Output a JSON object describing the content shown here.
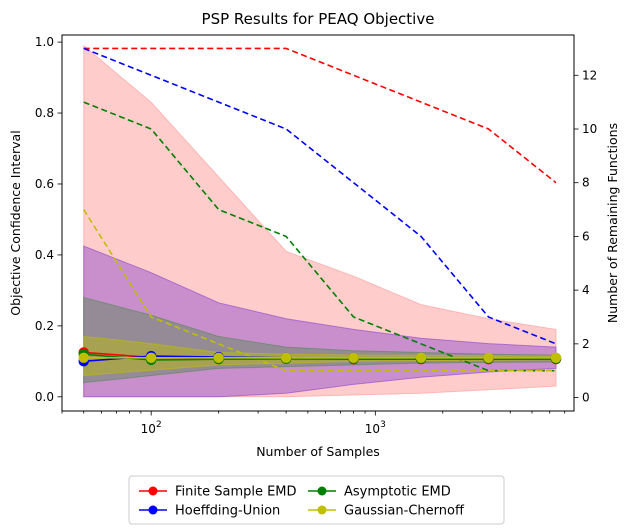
{
  "chart_data": {
    "type": "line",
    "title": "PSP Results for PEAQ Objective",
    "xlabel": "Number of Samples",
    "ylabel_left": "Objective Confidence Interval",
    "ylabel_right": "Number of Remaining Functions",
    "x_scale": "log",
    "xlim": [
      40,
      7700
    ],
    "ylim_left": [
      -0.04,
      1.02
    ],
    "ylim_right": [
      -0.5,
      13.5
    ],
    "x": [
      50,
      100,
      200,
      400,
      800,
      1600,
      3200,
      6400
    ],
    "x_ticks": [
      {
        "value": 100,
        "base": "10",
        "exp": "2"
      },
      {
        "value": 1000,
        "base": "10",
        "exp": "3"
      }
    ],
    "yticks_left": [
      {
        "value": 0.0,
        "label": "0.0"
      },
      {
        "value": 0.2,
        "label": "0.2"
      },
      {
        "value": 0.4,
        "label": "0.4"
      },
      {
        "value": 0.6,
        "label": "0.6"
      },
      {
        "value": 0.8,
        "label": "0.8"
      },
      {
        "value": 1.0,
        "label": "1.0"
      }
    ],
    "yticks_right": [
      {
        "value": 0,
        "label": "0"
      },
      {
        "value": 2,
        "label": "2"
      },
      {
        "value": 4,
        "label": "4"
      },
      {
        "value": 6,
        "label": "6"
      },
      {
        "value": 8,
        "label": "8"
      },
      {
        "value": 10,
        "label": "10"
      },
      {
        "value": 12,
        "label": "12"
      }
    ],
    "grid": false,
    "legend_position": "below",
    "series": [
      {
        "name": "Finite Sample EMD",
        "color": "#ff0000",
        "band_color": "#ff9999",
        "band_upper": [
          0.99,
          0.83,
          0.62,
          0.41,
          0.34,
          0.26,
          0.22,
          0.19
        ],
        "band_lower": [
          0.0,
          0.0,
          0.0,
          0.0,
          0.005,
          0.01,
          0.02,
          0.03
        ],
        "values": [
          0.125,
          0.111,
          0.108,
          0.107,
          0.106,
          0.106,
          0.106,
          0.106
        ],
        "remaining": [
          13,
          13,
          13,
          13,
          12,
          11,
          10,
          8
        ]
      },
      {
        "name": "Hoeffding-Union",
        "color": "#0000ff",
        "band_color": "#8844cc",
        "band_upper": [
          0.425,
          0.35,
          0.265,
          0.22,
          0.19,
          0.165,
          0.15,
          0.14
        ],
        "band_lower": [
          0.0,
          0.0,
          0.0,
          0.01,
          0.035,
          0.055,
          0.07,
          0.08
        ],
        "values": [
          0.1,
          0.115,
          0.112,
          0.11,
          0.11,
          0.109,
          0.109,
          0.109
        ],
        "remaining": [
          13,
          12,
          11,
          10,
          8,
          6,
          3,
          2
        ]
      },
      {
        "name": "Asymptotic EMD",
        "color": "#008000",
        "band_color": "#558855",
        "band_upper": [
          0.28,
          0.23,
          0.17,
          0.14,
          0.13,
          0.125,
          0.12,
          0.118
        ],
        "band_lower": [
          0.04,
          0.06,
          0.08,
          0.085,
          0.09,
          0.095,
          0.097,
          0.098
        ],
        "values": [
          0.12,
          0.104,
          0.106,
          0.107,
          0.107,
          0.107,
          0.107,
          0.107
        ],
        "remaining": [
          11,
          10,
          7,
          6,
          3,
          2,
          1,
          1
        ]
      },
      {
        "name": "Gaussian-Chernoff",
        "color": "#bfbf00",
        "band_color": "#bfbf00",
        "band_upper": [
          0.17,
          0.15,
          0.125,
          0.12,
          0.118,
          0.117,
          0.116,
          0.115
        ],
        "band_lower": [
          0.06,
          0.075,
          0.09,
          0.095,
          0.1,
          0.102,
          0.103,
          0.104
        ],
        "values": [
          0.11,
          0.11,
          0.11,
          0.11,
          0.11,
          0.11,
          0.11,
          0.11
        ],
        "remaining": [
          7,
          3,
          2,
          1,
          1,
          1,
          1,
          1
        ]
      }
    ]
  }
}
